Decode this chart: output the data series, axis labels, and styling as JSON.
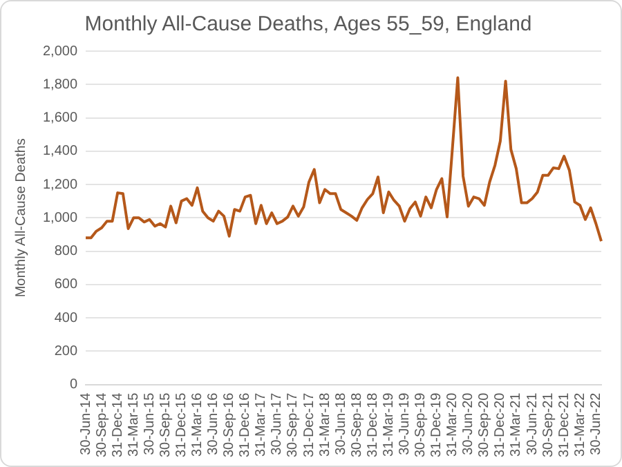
{
  "chart_data": {
    "type": "line",
    "title": "Monthly All-Cause Deaths, Ages 55_59, England",
    "ylabel": "Monthly All-Cause Deaths",
    "categories": [
      "30-Jun-14",
      null,
      null,
      "30-Sep-14",
      null,
      null,
      "31-Dec-14",
      null,
      null,
      "31-Mar-15",
      null,
      null,
      "30-Jun-15",
      null,
      null,
      "30-Sep-15",
      null,
      null,
      "31-Dec-15",
      null,
      null,
      "31-Mar-16",
      null,
      null,
      "30-Jun-16",
      null,
      null,
      "30-Sep-16",
      null,
      null,
      "31-Dec-16",
      null,
      null,
      "31-Mar-17",
      null,
      null,
      "30-Jun-17",
      null,
      null,
      "30-Sep-17",
      null,
      null,
      "31-Dec-17",
      null,
      null,
      "31-Mar-18",
      null,
      null,
      "30-Jun-18",
      null,
      null,
      "30-Sep-18",
      null,
      null,
      "31-Dec-18",
      null,
      null,
      "31-Mar-19",
      null,
      null,
      "30-Jun-19",
      null,
      null,
      "30-Sep-19",
      null,
      null,
      "31-Dec-19",
      null,
      null,
      "31-Mar-20",
      null,
      null,
      "30-Jun-20",
      null,
      null,
      "30-Sep-20",
      null,
      null,
      "31-Dec-20",
      null,
      null,
      "31-Mar-21",
      null,
      null,
      "30-Jun-21",
      null,
      null,
      "30-Sep-21",
      null,
      null,
      "31-Dec-21",
      null,
      null,
      "31-Mar-22",
      null,
      null,
      "30-Jun-22",
      null
    ],
    "series": [
      {
        "color": "#b5581a",
        "values": [
          880,
          880,
          920,
          940,
          980,
          980,
          1150,
          1145,
          935,
          1000,
          1000,
          975,
          990,
          950,
          965,
          945,
          1070,
          970,
          1100,
          1115,
          1075,
          1180,
          1040,
          1000,
          980,
          1040,
          1010,
          890,
          1050,
          1040,
          1125,
          1135,
          965,
          1075,
          965,
          1030,
          965,
          980,
          1005,
          1070,
          1010,
          1065,
          1215,
          1290,
          1090,
          1170,
          1145,
          1145,
          1050,
          1030,
          1010,
          985,
          1060,
          1110,
          1145,
          1245,
          1030,
          1155,
          1105,
          1070,
          980,
          1055,
          1095,
          1010,
          1125,
          1060,
          1170,
          1235,
          1005,
          1420,
          1840,
          1250,
          1070,
          1125,
          1115,
          1075,
          1215,
          1315,
          1460,
          1820,
          1410,
          1295,
          1090,
          1090,
          1115,
          1155,
          1255,
          1255,
          1300,
          1295,
          1370,
          1285,
          1095,
          1075,
          990,
          1060,
          965,
          860
        ]
      }
    ],
    "ylim": [
      0,
      2000
    ],
    "yticks": [
      0,
      {
        "value": 200,
        "label": "200"
      },
      {
        "value": 400,
        "label": "400"
      },
      {
        "value": 600,
        "label": "600"
      },
      {
        "value": 800,
        "label": "800"
      },
      {
        "value": 1000,
        "label": "1,000"
      },
      {
        "value": 1200,
        "label": "1,200"
      },
      {
        "value": 1400,
        "label": "1,400"
      },
      {
        "value": 1600,
        "label": "1,600"
      },
      {
        "value": 1800,
        "label": "1,800"
      },
      {
        "value": 2000,
        "label": "2,000"
      }
    ],
    "grid": "y",
    "legend": false,
    "marker": "none",
    "line_style": "solid"
  }
}
